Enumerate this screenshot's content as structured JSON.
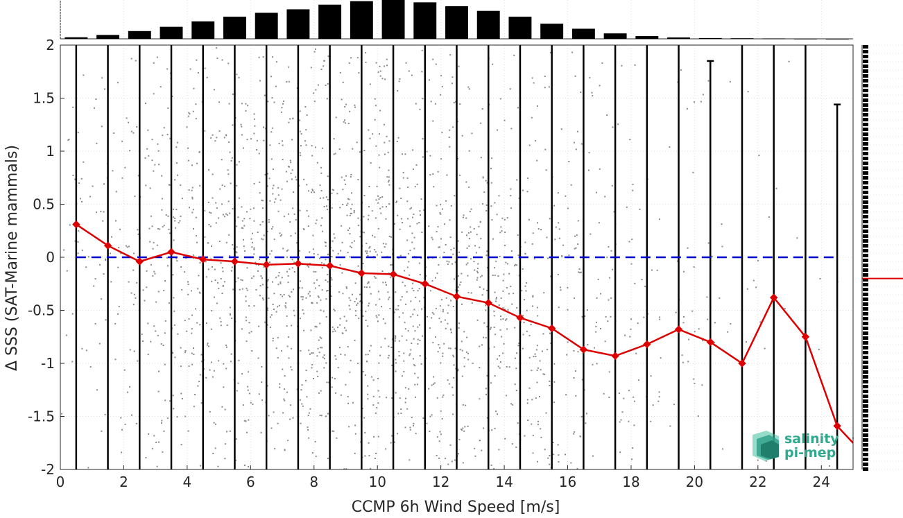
{
  "chart_data": {
    "type": "scatter",
    "xlabel": "CCMP 6h Wind Speed [m/s]",
    "ylabel": "Δ SSS (SAT-Marine mammals)",
    "xlim": [
      0,
      25
    ],
    "ylim": [
      -2,
      2
    ],
    "xticks": [
      0,
      2,
      4,
      6,
      8,
      10,
      12,
      14,
      16,
      18,
      20,
      22,
      24
    ],
    "yticks": [
      -2,
      -1.5,
      -1,
      -0.5,
      0,
      0.5,
      1,
      1.5,
      2
    ],
    "grid": true,
    "zero_reference_line": {
      "y": 0,
      "color": "#0000cc",
      "style": "dashed"
    },
    "bin_centers": [
      0.5,
      1.5,
      2.5,
      3.5,
      4.5,
      5.5,
      6.5,
      7.5,
      8.5,
      9.5,
      10.5,
      11.5,
      12.5,
      13.5,
      14.5,
      15.5,
      16.5,
      17.5,
      18.5,
      19.5,
      20.5,
      21.5,
      22.5,
      23.5,
      24.5
    ],
    "mean_series": {
      "color": "#dd0000",
      "marker": "diamond",
      "x": [
        0.5,
        1.5,
        2.5,
        3.5,
        4.5,
        5.5,
        6.5,
        7.5,
        8.5,
        9.5,
        10.5,
        11.5,
        12.5,
        13.5,
        14.5,
        15.5,
        16.5,
        17.5,
        18.5,
        19.5,
        20.5,
        21.5,
        22.5,
        23.5,
        24.5
      ],
      "y": [
        0.31,
        0.11,
        -0.04,
        0.05,
        -0.02,
        -0.04,
        -0.07,
        -0.06,
        -0.08,
        -0.15,
        -0.16,
        -0.25,
        -0.37,
        -0.43,
        -0.57,
        -0.67,
        -0.87,
        -0.93,
        -0.82,
        -0.68,
        -0.8,
        -1.0,
        -0.38,
        -0.75,
        -1.59
      ],
      "extension_to_x": 25,
      "extension_y": -1.75
    },
    "std_bars": {
      "color": "#000000",
      "x": [
        0.5,
        1.5,
        2.5,
        3.5,
        4.5,
        5.5,
        6.5,
        7.5,
        8.5,
        9.5,
        10.5,
        11.5,
        12.5,
        13.5,
        14.5,
        15.5,
        16.5,
        17.5,
        18.5,
        19.5,
        20.5,
        21.5,
        22.5,
        23.5,
        24.5
      ],
      "upper": [
        2,
        2,
        2,
        2,
        2,
        2,
        2,
        2,
        2,
        2,
        2,
        2,
        2,
        2,
        2,
        2,
        2,
        2,
        2,
        2,
        1.85,
        2,
        2,
        2,
        1.44
      ],
      "lower": [
        -2,
        -2,
        -2,
        -2,
        -2,
        -2,
        -2,
        -2,
        -2,
        -2,
        -2,
        -2,
        -2,
        -2,
        -2,
        -2,
        -2,
        -2,
        -2,
        -2,
        -2,
        -2,
        -2,
        -2,
        -2
      ],
      "upper_caps_at_x": [
        20.5,
        24.5
      ]
    },
    "scatter": {
      "color": "#8a8a8a",
      "description_density_peak_x": 10,
      "density_by_bin": [
        0.2,
        0.3,
        0.45,
        0.6,
        0.75,
        0.85,
        0.93,
        0.98,
        1.0,
        1.0,
        0.98,
        0.93,
        0.85,
        0.75,
        0.62,
        0.5,
        0.38,
        0.27,
        0.2,
        0.14,
        0.1,
        0.07,
        0.05,
        0.03,
        0.02
      ]
    },
    "top_histogram": {
      "type": "bar",
      "color": "#000000",
      "x": [
        0.5,
        1.5,
        2.5,
        3.5,
        4.5,
        5.5,
        6.5,
        7.5,
        8.5,
        9.5,
        10.5,
        11.5,
        12.5,
        13.5,
        14.5,
        15.5,
        16.5,
        17.5,
        18.5,
        19.5,
        20.5,
        21.5,
        22.5,
        23.5,
        24.5
      ],
      "relative_counts": [
        0.04,
        0.1,
        0.2,
        0.31,
        0.45,
        0.57,
        0.67,
        0.76,
        0.88,
        0.97,
        1.0,
        0.94,
        0.84,
        0.72,
        0.57,
        0.39,
        0.26,
        0.14,
        0.07,
        0.035,
        0.02,
        0.015,
        0.01,
        0.005,
        0.003
      ]
    },
    "right_marginal": {
      "type": "histogram",
      "mean_marker_y": -0.2,
      "mean_marker_color": "#dd0000"
    }
  },
  "logo": {
    "line1": "salinity",
    "line2": "pi-mep"
  },
  "icons": {
    "logo_mark": "salinity-pimep-logo-icon"
  },
  "colors": {
    "scatter": "#8a8a8a",
    "mean": "#dd0000",
    "zero_line": "#0000cc",
    "bars": "#000000",
    "logo_teal": "#2fa88e"
  }
}
